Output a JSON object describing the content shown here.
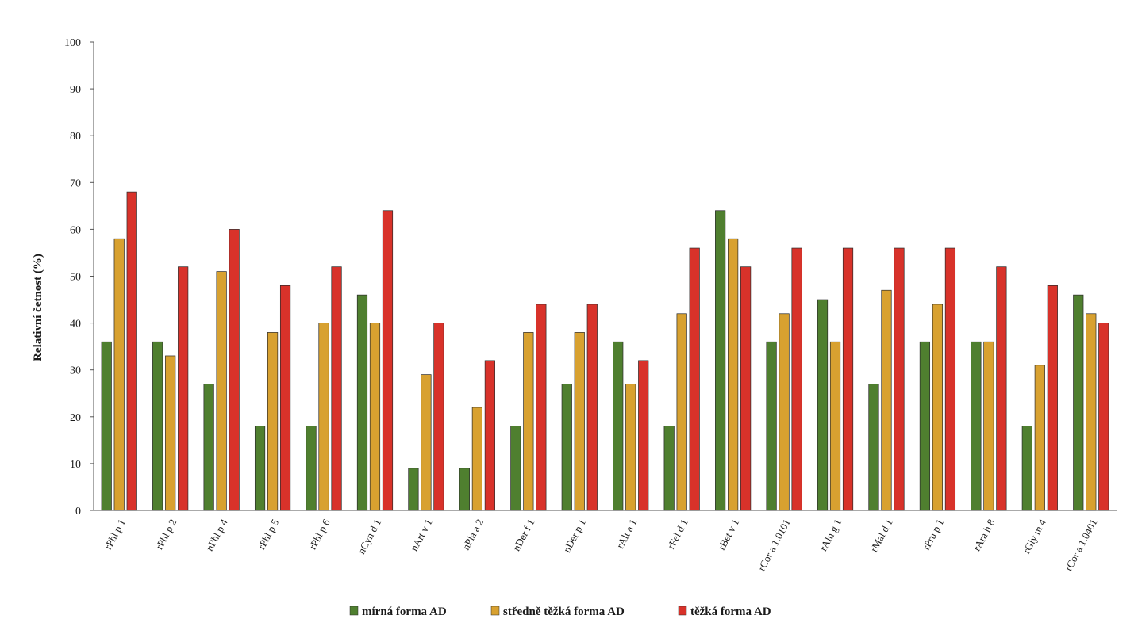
{
  "chart_data": {
    "type": "bar",
    "title": "",
    "xlabel": "",
    "ylabel": "Relativní četnost (%)",
    "ylim": [
      0,
      100
    ],
    "yticks": [
      0,
      10,
      20,
      30,
      40,
      50,
      60,
      70,
      80,
      90,
      100
    ],
    "grid": false,
    "legend_position": "bottom",
    "categories": [
      "rPhl p 1",
      "rPhl p 2",
      "nPhl p 4",
      "rPhl p 5",
      "rPhl p 6",
      "nCyn d 1",
      "nArt v 1",
      "nPla a 2",
      "nDer f 1",
      "nDer p 1",
      "rAlt a 1",
      "rFel d 1",
      "rBet v 1",
      "rCor a 1.0101",
      "rAln g 1",
      "rMal d 1",
      "rPru p 1",
      "rAra h 8",
      "rGly m 4",
      "rCor a 1.0401"
    ],
    "series": [
      {
        "name": "mírná forma AD",
        "color": "#4f7f2f",
        "values": [
          36,
          36,
          27,
          18,
          18,
          46,
          9,
          9,
          18,
          27,
          36,
          18,
          64,
          36,
          45,
          27,
          36,
          36,
          18,
          46
        ]
      },
      {
        "name": "středně těžká forma AD",
        "color": "#d8a130",
        "values": [
          58,
          33,
          51,
          38,
          40,
          40,
          29,
          22,
          38,
          38,
          27,
          42,
          58,
          42,
          36,
          47,
          44,
          36,
          31,
          42
        ]
      },
      {
        "name": "těžká forma AD",
        "color": "#d8322a",
        "values": [
          68,
          52,
          60,
          48,
          52,
          64,
          40,
          32,
          44,
          44,
          32,
          56,
          52,
          56,
          56,
          56,
          56,
          52,
          48,
          40
        ]
      }
    ]
  }
}
